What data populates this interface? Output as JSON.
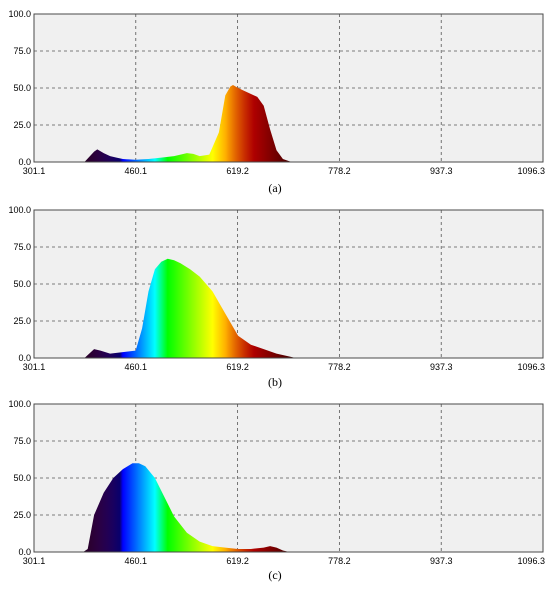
{
  "chart_data": [
    {
      "type": "area",
      "caption": "(a)",
      "xticks": [
        "301.1",
        "460.1",
        "619.2",
        "778.2",
        "937.3",
        "1096.3"
      ],
      "yticks": [
        "0.0",
        "25.0",
        "50.0",
        "75.0",
        "100.0"
      ],
      "xlim": [
        301.1,
        1096.3
      ],
      "ylim": [
        0,
        100
      ],
      "grid": true,
      "x": [
        380,
        395,
        400,
        410,
        420,
        430,
        440,
        460,
        480,
        500,
        520,
        540,
        550,
        560,
        575,
        590,
        600,
        608,
        612,
        620,
        630,
        650,
        660,
        670,
        680,
        690,
        700,
        705
      ],
      "y": [
        0,
        7,
        8.5,
        6,
        4,
        3,
        2,
        1.5,
        2,
        3,
        4,
        6,
        5.5,
        4,
        5,
        20,
        45,
        51,
        52,
        50,
        48,
        44,
        38,
        22,
        8,
        2,
        0.5,
        0
      ]
    },
    {
      "type": "area",
      "caption": "(b)",
      "xticks": [
        "301.1",
        "460.1",
        "619.2",
        "778.2",
        "937.3",
        "1096.3"
      ],
      "yticks": [
        "0.0",
        "25.0",
        "50.0",
        "75.0",
        "100.0"
      ],
      "xlim": [
        301.1,
        1096.3
      ],
      "ylim": [
        0,
        100
      ],
      "grid": true,
      "x": [
        380,
        395,
        405,
        420,
        440,
        460,
        470,
        480,
        490,
        500,
        510,
        520,
        530,
        545,
        560,
        580,
        600,
        620,
        640,
        660,
        680,
        700,
        710
      ],
      "y": [
        0,
        6,
        5,
        3,
        4,
        5,
        20,
        45,
        60,
        65,
        67,
        66,
        64,
        60,
        55,
        45,
        30,
        15,
        9,
        6,
        3,
        1,
        0
      ]
    },
    {
      "type": "area",
      "caption": "(c)",
      "xticks": [
        "301.1",
        "460.1",
        "619.2",
        "778.2",
        "937.3",
        "1096.3"
      ],
      "yticks": [
        "0.0",
        "25.0",
        "50.0",
        "75.0",
        "100.0"
      ],
      "xlim": [
        301.1,
        1096.3
      ],
      "ylim": [
        0,
        100
      ],
      "grid": true,
      "x": [
        378,
        385,
        395,
        410,
        425,
        440,
        455,
        465,
        475,
        490,
        505,
        520,
        540,
        560,
        580,
        600,
        620,
        640,
        660,
        670,
        680,
        690,
        700
      ],
      "y": [
        0,
        2,
        25,
        40,
        50,
        56,
        60,
        60,
        58,
        50,
        37,
        24,
        13,
        7,
        4,
        3,
        2,
        2,
        3,
        4,
        3,
        1,
        0
      ]
    }
  ]
}
